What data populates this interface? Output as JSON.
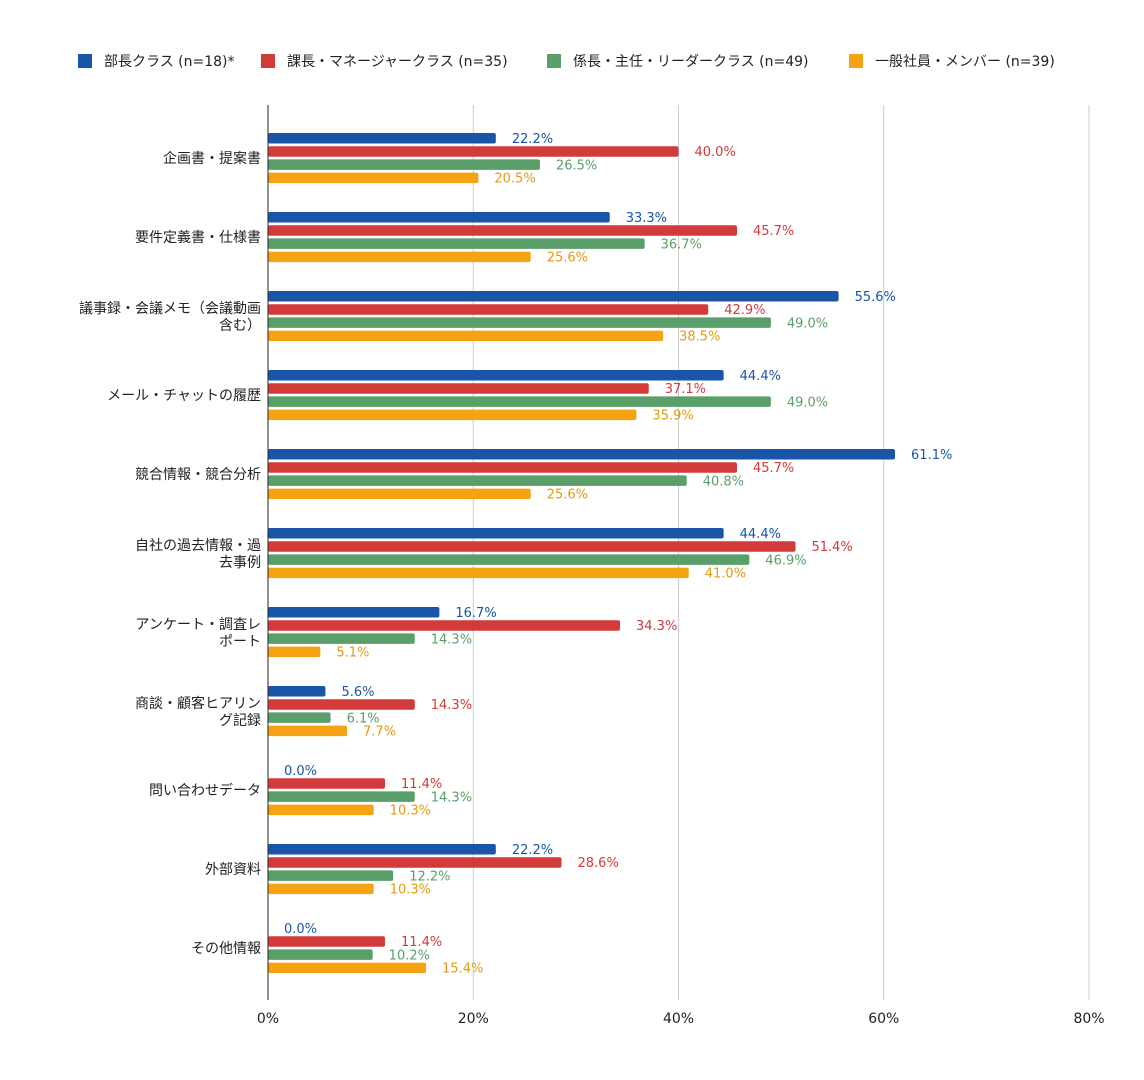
{
  "chart_data": {
    "type": "bar",
    "orientation": "horizontal",
    "categories": [
      "企画書・提案書",
      "要件定義書・仕様書",
      "議事録・会議メモ（会議動画含む）",
      "メール・チャットの履歴",
      "競合情報・競合分析",
      "自社の過去情報・過去事例",
      "アンケート・調査レポート",
      "商談・顧客ヒアリング記録",
      "問い合わせデータ",
      "外部資料",
      "その他情報"
    ],
    "series": [
      {
        "name": "部長クラス (n=18)*",
        "color": "#1a56a8",
        "values": [
          22.2,
          33.3,
          55.6,
          44.4,
          61.1,
          44.4,
          16.7,
          5.6,
          0.0,
          22.2,
          0.0
        ],
        "labels": [
          "22.2%",
          "33.3%",
          "55.6%",
          "44.4%",
          "61.1%",
          "44.4%",
          "16.7%",
          "5.6%",
          "0.0%",
          "22.2%",
          "0.0%"
        ]
      },
      {
        "name": "課長・マネージャークラス (n=35)",
        "color": "#d33a3a",
        "values": [
          40.0,
          45.7,
          42.9,
          37.1,
          45.7,
          51.4,
          34.3,
          14.3,
          11.4,
          28.6,
          11.4
        ],
        "labels": [
          "40.0%",
          "45.7%",
          "42.9%",
          "37.1%",
          "45.7%",
          "51.4%",
          "34.3%",
          "14.3%",
          "11.4%",
          "28.6%",
          "11.4%"
        ]
      },
      {
        "name": "係長・主任・リーダークラス (n=49)",
        "color": "#5a9e6a",
        "values": [
          26.5,
          36.7,
          49.0,
          49.0,
          40.8,
          46.9,
          14.3,
          6.1,
          14.3,
          12.2,
          10.2
        ],
        "labels": [
          "26.5%",
          "36.7%",
          "49.0%",
          "49.0%",
          "40.8%",
          "46.9%",
          "14.3%",
          "6.1%",
          "14.3%",
          "12.2%",
          "10.2%"
        ]
      },
      {
        "name": "一般社員・メンバー (n=39)",
        "color": "#f5a313",
        "values": [
          20.5,
          25.6,
          38.5,
          35.9,
          25.6,
          41.0,
          5.1,
          7.7,
          10.3,
          10.3,
          15.4
        ],
        "labels": [
          "20.5%",
          "25.6%",
          "38.5%",
          "35.9%",
          "25.6%",
          "41.0%",
          "5.1%",
          "7.7%",
          "10.3%",
          "10.3%",
          "15.4%"
        ]
      }
    ],
    "xlim": [
      0,
      80
    ],
    "ticks": [
      0,
      20,
      40,
      60,
      80
    ],
    "tick_labels": [
      "0%",
      "20%",
      "40%",
      "60%",
      "80%"
    ],
    "title": "",
    "xlabel": "",
    "ylabel": "",
    "grid": true,
    "legend_position": "top"
  }
}
